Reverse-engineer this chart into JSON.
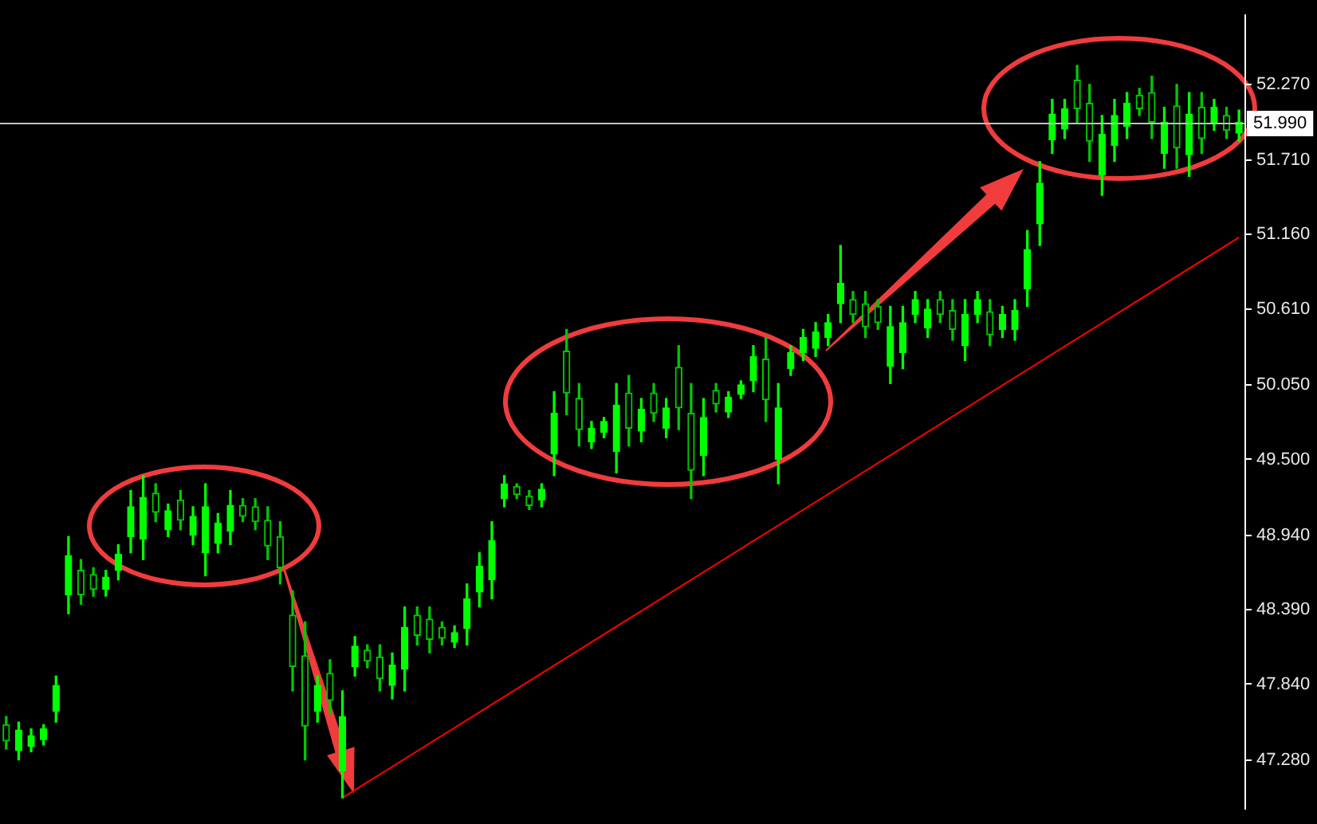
{
  "chart_data": {
    "type": "candlestick",
    "colors": [
      "#00c800",
      "#00ff00",
      "#00ff00",
      "#00ff00",
      "#00ff00",
      "#00ff00",
      "#00c800",
      "#00c800",
      "#00ff00",
      "#00ff00",
      "#00ff00",
      "#00ff00",
      "#00c800",
      "#00ff00",
      "#00c800",
      "#00ff00",
      "#00ff00",
      "#00ff00",
      "#00ff00",
      "#00c800",
      "#00c800",
      "#00c800",
      "#00c800",
      "#00c800",
      "#00c800",
      "#00ff00",
      "#00c800",
      "#00ff00",
      "#00ff00",
      "#00c800",
      "#00c800",
      "#00ff00",
      "#00ff00",
      "#00c800",
      "#00c800",
      "#00c800",
      "#00ff00",
      "#00ff00",
      "#00ff00",
      "#00ff00",
      "#00ff00",
      "#00c800",
      "#00c800",
      "#00ff00",
      "#00ff00",
      "#00c800",
      "#00c800",
      "#00ff00",
      "#00ff00",
      "#00ff00",
      "#00c800",
      "#00ff00",
      "#00c800",
      "#00ff00",
      "#00c800",
      "#00c800",
      "#00ff00",
      "#00c800",
      "#00ff00",
      "#00ff00",
      "#00ff00",
      "#00c800",
      "#00ff00",
      "#00ff00",
      "#00ff00",
      "#00ff00",
      "#00ff00",
      "#00ff00",
      "#00c800",
      "#00c800",
      "#00c800",
      "#00ff00",
      "#00ff00",
      "#00ff00",
      "#00ff00",
      "#00c800",
      "#00c800",
      "#00ff00",
      "#00ff00",
      "#00c800",
      "#00ff00",
      "#00ff00",
      "#00ff00",
      "#00ff00",
      "#00ff00",
      "#00ff00",
      "#00c800",
      "#00c800",
      "#00ff00",
      "#00ff00",
      "#00ff00",
      "#00c800",
      "#00c800",
      "#00ff00",
      "#00c800",
      "#00ff00",
      "#00c800",
      "#00ff00",
      "#00c800",
      "#00ff00"
    ],
    "categories": [
      null,
      null,
      null,
      null,
      null,
      null,
      null,
      null,
      null,
      null,
      null,
      null,
      null,
      null,
      null,
      null,
      null,
      null,
      null,
      null,
      null,
      null,
      null,
      null,
      null,
      null,
      null,
      null,
      null,
      null,
      null,
      null,
      null,
      null,
      null,
      null,
      null,
      null,
      null,
      null,
      null,
      null,
      null,
      null,
      null,
      null,
      null,
      null,
      null,
      null,
      null,
      null,
      null,
      null,
      null,
      null,
      null,
      null,
      null,
      null,
      null,
      null,
      null,
      null,
      null,
      null,
      null,
      null,
      null,
      null,
      null,
      null,
      null,
      null,
      null,
      null,
      null,
      null,
      null,
      null,
      null,
      null,
      null,
      null,
      null,
      null,
      null,
      null,
      null,
      null,
      null,
      null,
      null,
      null,
      null,
      null,
      null,
      null,
      null,
      null
    ],
    "ohlc": [
      [
        47.54,
        47.6,
        47.36,
        47.42
      ],
      [
        47.35,
        47.56,
        47.28,
        47.5
      ],
      [
        47.38,
        47.51,
        47.34,
        47.46
      ],
      [
        47.43,
        47.54,
        47.39,
        47.51
      ],
      [
        47.64,
        47.9,
        47.56,
        47.83
      ],
      [
        48.5,
        48.93,
        48.36,
        48.79
      ],
      [
        48.68,
        48.76,
        48.43,
        48.5
      ],
      [
        48.65,
        48.7,
        48.49,
        48.54
      ],
      [
        48.54,
        48.68,
        48.49,
        48.63
      ],
      [
        48.68,
        48.87,
        48.61,
        48.8
      ],
      [
        48.93,
        49.27,
        48.81,
        49.15
      ],
      [
        48.91,
        49.38,
        48.76,
        49.22
      ],
      [
        49.25,
        49.32,
        49.04,
        49.11
      ],
      [
        48.98,
        49.17,
        48.93,
        49.12
      ],
      [
        49.2,
        49.27,
        48.98,
        49.05
      ],
      [
        48.94,
        49.15,
        48.87,
        49.08
      ],
      [
        48.81,
        49.32,
        48.64,
        49.15
      ],
      [
        48.88,
        49.1,
        48.81,
        49.03
      ],
      [
        48.97,
        49.27,
        48.87,
        49.16
      ],
      [
        49.16,
        49.21,
        49.04,
        49.08
      ],
      [
        49.15,
        49.21,
        48.98,
        49.04
      ],
      [
        49.05,
        49.15,
        48.76,
        48.86
      ],
      [
        48.93,
        49.04,
        48.58,
        48.7
      ],
      [
        48.35,
        48.53,
        47.79,
        47.97
      ],
      [
        48.05,
        48.3,
        47.28,
        47.53
      ],
      [
        47.64,
        47.9,
        47.56,
        47.83
      ],
      [
        47.92,
        48.02,
        47.62,
        47.72
      ],
      [
        47.2,
        47.79,
        47.0,
        47.6
      ],
      [
        47.97,
        48.19,
        47.9,
        48.12
      ],
      [
        48.09,
        48.13,
        47.96,
        48.01
      ],
      [
        48.04,
        48.13,
        47.79,
        47.88
      ],
      [
        47.83,
        48.07,
        47.73,
        47.98
      ],
      [
        47.95,
        48.41,
        47.79,
        48.26
      ],
      [
        48.35,
        48.41,
        48.13,
        48.2
      ],
      [
        48.32,
        48.41,
        48.07,
        48.17
      ],
      [
        48.26,
        48.3,
        48.13,
        48.18
      ],
      [
        48.15,
        48.27,
        48.11,
        48.22
      ],
      [
        48.25,
        48.58,
        48.13,
        48.47
      ],
      [
        48.52,
        48.81,
        48.41,
        48.71
      ],
      [
        48.61,
        49.04,
        48.47,
        48.9
      ],
      [
        49.21,
        49.38,
        49.15,
        49.32
      ],
      [
        49.3,
        49.32,
        49.21,
        49.24
      ],
      [
        49.23,
        49.27,
        49.13,
        49.16
      ],
      [
        49.2,
        49.32,
        49.15,
        49.28
      ],
      [
        49.54,
        50.0,
        49.38,
        49.84
      ],
      [
        50.3,
        50.46,
        49.83,
        49.99
      ],
      [
        49.95,
        50.06,
        49.6,
        49.72
      ],
      [
        49.63,
        49.78,
        49.58,
        49.73
      ],
      [
        49.7,
        49.81,
        49.66,
        49.78
      ],
      [
        49.56,
        50.06,
        49.4,
        49.9
      ],
      [
        49.99,
        50.12,
        49.6,
        49.73
      ],
      [
        49.71,
        49.95,
        49.63,
        49.87
      ],
      [
        49.99,
        50.06,
        49.78,
        49.84
      ],
      [
        49.73,
        49.95,
        49.66,
        49.88
      ],
      [
        50.18,
        50.34,
        49.72,
        49.88
      ],
      [
        49.84,
        50.06,
        49.21,
        49.42
      ],
      [
        49.53,
        49.95,
        49.38,
        49.81
      ],
      [
        50.01,
        50.06,
        49.85,
        49.91
      ],
      [
        49.85,
        50.0,
        49.81,
        49.96
      ],
      [
        49.98,
        50.08,
        49.95,
        50.05
      ],
      [
        50.08,
        50.34,
        50.0,
        50.26
      ],
      [
        50.24,
        50.4,
        49.78,
        49.94
      ],
      [
        49.5,
        50.06,
        49.32,
        49.88
      ],
      [
        50.17,
        50.34,
        50.12,
        50.29
      ],
      [
        50.29,
        50.46,
        50.23,
        50.4
      ],
      [
        50.32,
        50.51,
        50.26,
        50.44
      ],
      [
        50.4,
        50.57,
        50.34,
        50.51
      ],
      [
        50.65,
        51.08,
        50.51,
        50.8
      ],
      [
        50.68,
        50.74,
        50.51,
        50.57
      ],
      [
        50.65,
        50.74,
        50.4,
        50.48
      ],
      [
        50.63,
        50.68,
        50.46,
        50.51
      ],
      [
        50.19,
        50.63,
        50.06,
        50.48
      ],
      [
        50.29,
        50.63,
        50.17,
        50.51
      ],
      [
        50.57,
        50.74,
        50.51,
        50.68
      ],
      [
        50.47,
        50.68,
        50.4,
        50.61
      ],
      [
        50.68,
        50.74,
        50.51,
        50.57
      ],
      [
        50.6,
        50.68,
        50.38,
        50.46
      ],
      [
        50.34,
        50.68,
        50.23,
        50.57
      ],
      [
        50.57,
        50.74,
        50.51,
        50.68
      ],
      [
        50.59,
        50.68,
        50.34,
        50.42
      ],
      [
        50.46,
        50.63,
        50.4,
        50.57
      ],
      [
        50.46,
        50.68,
        50.38,
        50.6
      ],
      [
        50.76,
        51.19,
        50.63,
        51.05
      ],
      [
        51.24,
        51.7,
        51.08,
        51.54
      ],
      [
        51.86,
        52.16,
        51.76,
        52.05
      ],
      [
        51.94,
        52.16,
        51.87,
        52.09
      ],
      [
        52.3,
        52.41,
        51.99,
        52.09
      ],
      [
        52.13,
        52.27,
        51.7,
        51.85
      ],
      [
        51.6,
        52.04,
        51.45,
        51.9
      ],
      [
        51.82,
        52.16,
        51.7,
        52.04
      ],
      [
        51.96,
        52.21,
        51.87,
        52.13
      ],
      [
        52.19,
        52.24,
        52.04,
        52.09
      ],
      [
        52.21,
        52.33,
        51.87,
        51.99
      ],
      [
        51.76,
        52.1,
        51.65,
        51.99
      ],
      [
        52.11,
        52.27,
        51.65,
        51.8
      ],
      [
        51.75,
        52.21,
        51.59,
        52.05
      ],
      [
        52.1,
        52.21,
        51.76,
        51.87
      ],
      [
        51.99,
        52.16,
        51.93,
        52.1
      ],
      [
        52.04,
        52.1,
        51.87,
        51.93
      ],
      [
        51.91,
        52.08,
        51.85,
        51.99
      ]
    ],
    "series": [
      {
        "type": "line",
        "values": [
          null,
          null,
          null,
          null,
          null,
          null,
          null,
          null,
          null,
          null,
          null,
          null,
          null,
          null,
          null,
          null,
          null,
          null,
          null,
          null,
          null,
          null,
          null,
          null,
          null,
          null,
          null,
          47.0,
          null,
          null,
          null,
          null,
          null,
          null,
          null,
          null,
          null,
          null,
          null,
          null,
          null,
          null,
          null,
          null,
          null,
          null,
          null,
          null,
          null,
          null,
          null,
          null,
          null,
          null,
          null,
          null,
          null,
          null,
          null,
          null,
          null,
          null,
          null,
          null,
          null,
          null,
          null,
          null,
          null,
          null,
          null,
          null,
          null,
          null,
          null,
          null,
          null,
          null,
          null,
          null,
          null,
          null,
          null,
          null,
          null,
          null,
          null,
          null,
          null,
          null,
          null,
          null,
          null,
          null,
          null,
          null,
          null,
          null,
          null,
          51.14
        ],
        "color": "#ff0000"
      }
    ],
    "ylim": [
      46.92,
      52.78
    ],
    "yticks": [
      {
        "value": 47.28,
        "label": "47.280"
      },
      {
        "value": 47.84,
        "label": "47.840"
      },
      {
        "value": 48.39,
        "label": "48.390"
      },
      {
        "value": 48.94,
        "label": "48.940"
      },
      {
        "value": 49.5,
        "label": "49.500"
      },
      {
        "value": 50.05,
        "label": "50.050"
      },
      {
        "value": 50.61,
        "label": "50.610"
      },
      {
        "value": 51.16,
        "label": "51.160"
      },
      {
        "value": 51.71,
        "label": "51.710"
      },
      {
        "value": 52.27,
        "label": "52.270"
      }
    ],
    "ref_lines": [
      {
        "axis": "y",
        "value": 51.99,
        "label": "51.990",
        "color": "#c0c0c0"
      }
    ],
    "tick_labels": "y",
    "grid": false,
    "legend": false
  }
}
